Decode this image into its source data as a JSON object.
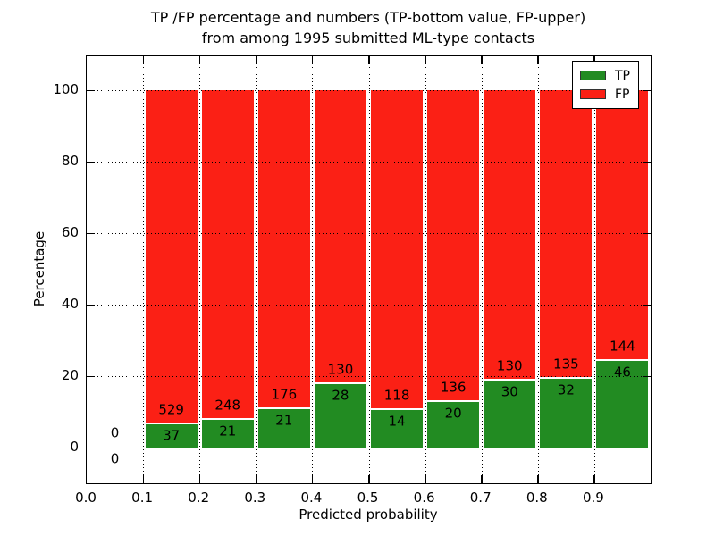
{
  "chart_data": {
    "type": "bar",
    "subtype": "stacked_percentage_bar",
    "title": "TP /FP percentage and numbers (TP-bottom value, FP-upper)",
    "title_line2": "from among 1995 submitted ML-type contacts",
    "xlabel": "Predicted probability",
    "ylabel": "Percentage",
    "x_tick_labels": [
      "0.0",
      "0.1",
      "0.2",
      "0.3",
      "0.4",
      "0.5",
      "0.6",
      "0.7",
      "0.8",
      "0.9"
    ],
    "y_tick_labels": [
      "0",
      "20",
      "40",
      "60",
      "80",
      "100"
    ],
    "y_tick_values": [
      0,
      20,
      40,
      60,
      80,
      100
    ],
    "xlim": [
      0.0,
      1.0
    ],
    "ylim": [
      -10,
      110
    ],
    "bar_width": 0.1,
    "grid": "dotted black, drawn above bars",
    "colors": {
      "tp": "#228b22",
      "fp": "#fb2015",
      "grid": "#000000",
      "background": "#ffffff"
    },
    "legend": {
      "position": "upper right",
      "entries": [
        {
          "label": "TP",
          "color": "#228b22"
        },
        {
          "label": "FP",
          "color": "#fb2015"
        }
      ]
    },
    "bins": [
      {
        "x_start": 0.0,
        "x_end": 0.1,
        "tp": 0,
        "fp": 0,
        "tp_pct": 0.0,
        "fp_pct": 0.0
      },
      {
        "x_start": 0.1,
        "x_end": 0.2,
        "tp": 37,
        "fp": 529,
        "tp_pct": 6.5,
        "fp_pct": 93.5
      },
      {
        "x_start": 0.2,
        "x_end": 0.3,
        "tp": 21,
        "fp": 248,
        "tp_pct": 7.8,
        "fp_pct": 92.2
      },
      {
        "x_start": 0.3,
        "x_end": 0.4,
        "tp": 21,
        "fp": 176,
        "tp_pct": 10.7,
        "fp_pct": 89.3
      },
      {
        "x_start": 0.4,
        "x_end": 0.5,
        "tp": 28,
        "fp": 130,
        "tp_pct": 17.7,
        "fp_pct": 82.3
      },
      {
        "x_start": 0.5,
        "x_end": 0.6,
        "tp": 14,
        "fp": 118,
        "tp_pct": 10.6,
        "fp_pct": 89.4
      },
      {
        "x_start": 0.6,
        "x_end": 0.7,
        "tp": 20,
        "fp": 136,
        "tp_pct": 12.8,
        "fp_pct": 87.2
      },
      {
        "x_start": 0.7,
        "x_end": 0.8,
        "tp": 30,
        "fp": 130,
        "tp_pct": 18.8,
        "fp_pct": 81.2
      },
      {
        "x_start": 0.8,
        "x_end": 0.9,
        "tp": 32,
        "fp": 135,
        "tp_pct": 19.2,
        "fp_pct": 80.8
      },
      {
        "x_start": 0.9,
        "x_end": 1.0,
        "tp": 46,
        "fp": 144,
        "tp_pct": 24.2,
        "fp_pct": 75.8
      }
    ]
  }
}
